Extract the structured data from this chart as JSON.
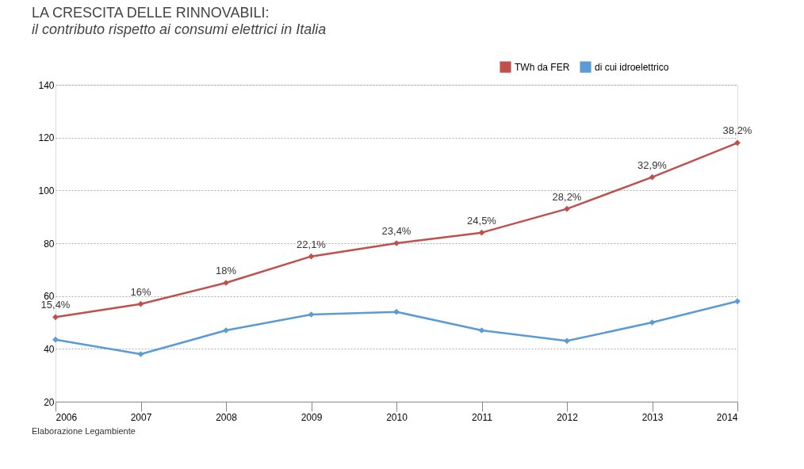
{
  "chart_data": {
    "type": "line",
    "title": "LA CRESCITA DELLE RINNOVABILI:",
    "subtitle": "il contributo rispetto ai consumi elettrici in Italia",
    "x": [
      2006,
      2007,
      2008,
      2009,
      2010,
      2011,
      2012,
      2013,
      2014
    ],
    "series": [
      {
        "name": "TWh da FER",
        "color": "#c0504d",
        "values": [
          52,
          57,
          65,
          75,
          80,
          84,
          93,
          105,
          118
        ]
      },
      {
        "name": "di cui idroelettrico",
        "color": "#5b9bd5",
        "values": [
          43.5,
          38,
          47,
          53,
          54,
          47,
          43,
          50,
          58
        ]
      }
    ],
    "xlim": [
      2006,
      2014
    ],
    "xticks": [
      2006,
      2007,
      2008,
      2009,
      2010,
      2011,
      2012,
      2013,
      2014
    ],
    "ylim": [
      20,
      140
    ],
    "yticks": [
      20,
      40,
      60,
      80,
      100,
      120,
      140
    ],
    "grid": "y",
    "legend": "top right",
    "marker": "diamond",
    "line_style": "solid",
    "annotations": [
      {
        "text": "15,4%",
        "x": 2006,
        "y": 52
      },
      {
        "text": "16%",
        "x": 2007,
        "y": 57
      },
      {
        "text": "18%",
        "x": 2008,
        "y": 65
      },
      {
        "text": "22,1%",
        "x": 2009,
        "y": 75
      },
      {
        "text": "23,4%",
        "x": 2010,
        "y": 80
      },
      {
        "text": "24,5%",
        "x": 2011,
        "y": 84
      },
      {
        "text": "28,2%",
        "x": 2012,
        "y": 93
      },
      {
        "text": "32,9%",
        "x": 2013,
        "y": 105
      },
      {
        "text": "38,2%",
        "x": 2014,
        "y": 118
      },
      "Elaborazione Legambiente"
    ]
  }
}
